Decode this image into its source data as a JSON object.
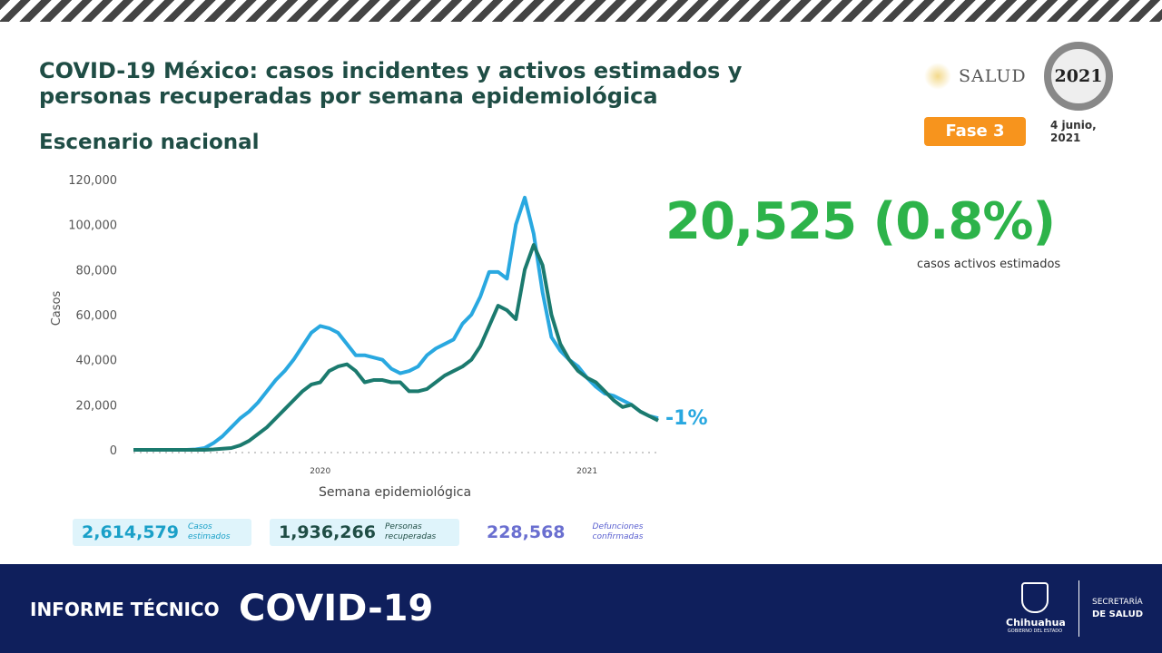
{
  "header": {
    "title": "COVID-19 México: casos incidentes y activos estimados y personas recuperadas por semana epidemiológica",
    "subtitle": "Escenario nacional",
    "logo_text": "SALUD",
    "seal_text": "2021",
    "phase": "Fase 3",
    "date": "4 junio, 2021"
  },
  "highlight": {
    "value": "20,525 (0.8%)",
    "caption": "casos activos estimados",
    "change": "-1%"
  },
  "stats": [
    {
      "value": "2,614,579",
      "label": "Casos estimados",
      "color": "#1aa0c8"
    },
    {
      "value": "1,936,266",
      "label": "Personas recuperadas",
      "color": "#1f4d45"
    },
    {
      "value": "228,568",
      "label": "Defunciones confirmadas",
      "color": "#6a6fd0"
    }
  ],
  "footer": {
    "left": "INFORME TÉCNICO",
    "right": "COVID-19",
    "org": "Chihuahua",
    "org_sub": "GOBIERNO DEL ESTADO",
    "dept1": "SECRETARÍA",
    "dept2": "DE SALUD"
  },
  "chart_data": {
    "type": "line",
    "xlabel": "Semana epidemiológica",
    "ylabel": "Casos",
    "ylim": [
      0,
      120000
    ],
    "yticks": [
      "0",
      "20,000",
      "40,000",
      "60,000",
      "80,000",
      "100,000",
      "120,000"
    ],
    "year_labels": [
      {
        "label": "2020",
        "week_index": 21
      },
      {
        "label": "2021",
        "week_index": 51
      }
    ],
    "grid": false,
    "series": [
      {
        "color": "#29a8e0",
        "values": [
          0,
          0,
          0,
          0,
          0,
          0,
          0,
          200,
          800,
          3000,
          6000,
          10000,
          14000,
          17000,
          21000,
          26000,
          31000,
          35000,
          40000,
          46000,
          52000,
          55000,
          54000,
          52000,
          47000,
          42000,
          42000,
          41000,
          40000,
          36000,
          34000,
          35000,
          37000,
          42000,
          45000,
          47000,
          49000,
          56000,
          60000,
          68000,
          79000,
          79000,
          76000,
          100000,
          112000,
          96000,
          70000,
          50000,
          44000,
          40000,
          37000,
          32000,
          28000,
          25000,
          24000,
          22000,
          20000,
          17000,
          15000,
          14000
        ]
      },
      {
        "color": "#1b7a6e",
        "values": [
          0,
          0,
          0,
          0,
          0,
          0,
          0,
          0,
          0,
          200,
          500,
          800,
          2000,
          4000,
          7000,
          10000,
          14000,
          18000,
          22000,
          26000,
          29000,
          30000,
          35000,
          37000,
          38000,
          35000,
          30000,
          31000,
          31000,
          30000,
          30000,
          26000,
          26000,
          27000,
          30000,
          33000,
          35000,
          37000,
          40000,
          46000,
          55000,
          64000,
          62000,
          58000,
          80000,
          91000,
          82000,
          60000,
          47000,
          40000,
          35000,
          32000,
          30000,
          26000,
          22000,
          19000,
          20000,
          17000,
          15000,
          13000
        ]
      }
    ]
  }
}
